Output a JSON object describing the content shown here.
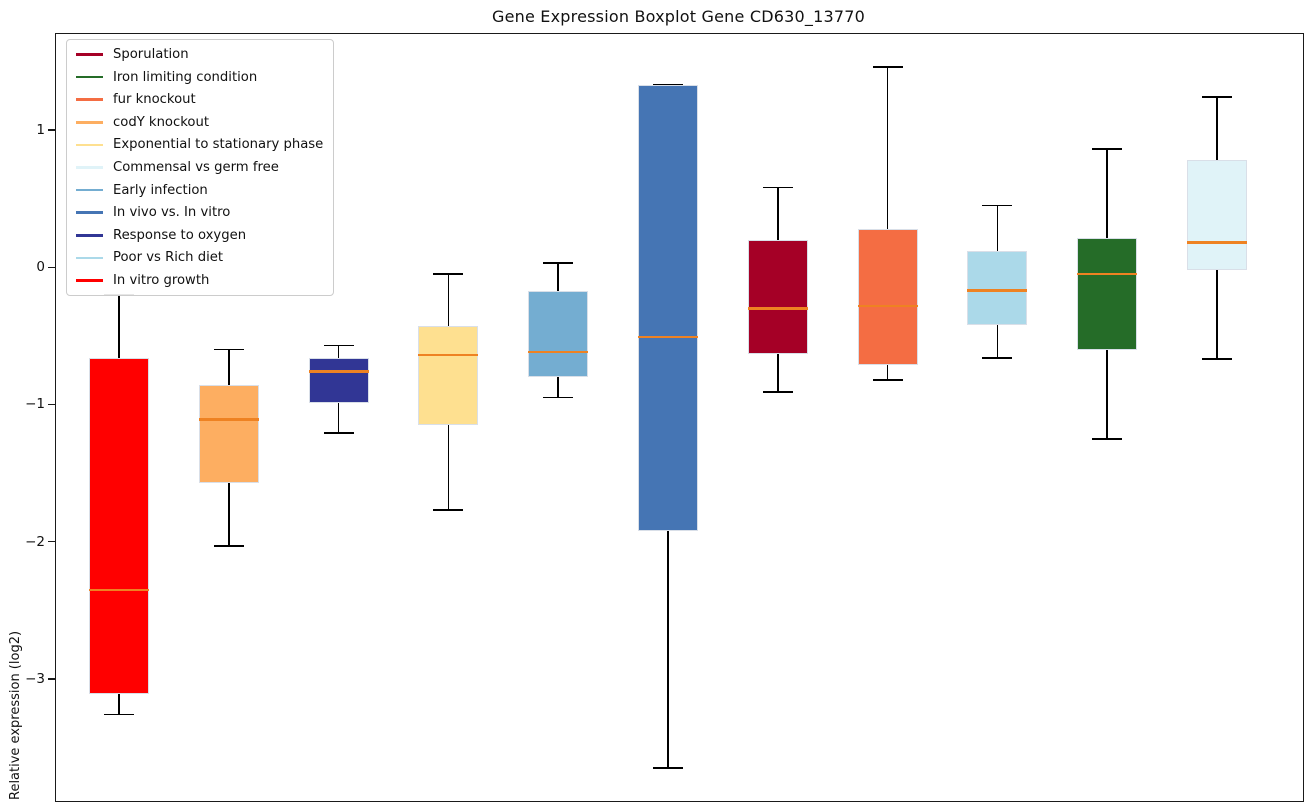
{
  "title": "Gene Expression Boxplot Gene CD630_13770",
  "ylabel": "Relative expression (log2)",
  "colors": {
    "median_line": "#ee8222",
    "whisker": "#000000",
    "frame": "#1a1a1a",
    "background": "#ffffff",
    "legend_border": "#cccccc"
  },
  "legend": {
    "position": "upper-left",
    "items": [
      {
        "label": "Sporulation",
        "color": "#a50026"
      },
      {
        "label": "Iron limiting condition",
        "color": "#256c28"
      },
      {
        "label": "fur knockout",
        "color": "#f46d43"
      },
      {
        "label": "codY knockout",
        "color": "#fdae61"
      },
      {
        "label": "Exponential to stationary phase",
        "color": "#fee090"
      },
      {
        "label": "Commensal vs germ free",
        "color": "#e0f3f8"
      },
      {
        "label": "Early infection",
        "color": "#74add1"
      },
      {
        "label": "In vivo vs. In vitro",
        "color": "#4575b4"
      },
      {
        "label": "Response to oxygen",
        "color": "#313695"
      },
      {
        "label": "Poor vs Rich diet",
        "color": "#abd9e9"
      },
      {
        "label": "In vitro growth",
        "color": "#ff0000"
      }
    ]
  },
  "chart_data": {
    "type": "boxplot",
    "title": "Gene Expression Boxplot Gene CD630_13770",
    "xlabel": "",
    "ylabel": "Relative expression (log2)",
    "ylim": [
      -3.89,
      1.7
    ],
    "yticks": [
      1,
      0,
      -1,
      -2,
      -3
    ],
    "ytick_labels": [
      "1",
      "0",
      "−1",
      "−2",
      "−3"
    ],
    "grid": false,
    "x_tick_labels_shown": false,
    "series": [
      {
        "name": "In vitro growth",
        "color": "#ff0000",
        "whisker_low": -3.26,
        "q1": -3.11,
        "median": -2.35,
        "q3": -0.66,
        "whisker_high": -0.2
      },
      {
        "name": "codY knockout",
        "color": "#fdae61",
        "whisker_low": -2.03,
        "q1": -1.57,
        "median": -1.11,
        "q3": -0.86,
        "whisker_high": -0.6
      },
      {
        "name": "Response to oxygen",
        "color": "#313695",
        "whisker_low": -1.21,
        "q1": -0.99,
        "median": -0.76,
        "q3": -0.66,
        "whisker_high": -0.57
      },
      {
        "name": "Exponential to stationary phase",
        "color": "#fee090",
        "whisker_low": -1.77,
        "q1": -1.15,
        "median": -0.64,
        "q3": -0.43,
        "whisker_high": -0.05
      },
      {
        "name": "Early infection",
        "color": "#74add1",
        "whisker_low": -0.95,
        "q1": -0.8,
        "median": -0.62,
        "q3": -0.17,
        "whisker_high": 0.03
      },
      {
        "name": "In vivo vs. In vitro",
        "color": "#4575b4",
        "whisker_low": -3.65,
        "q1": -1.92,
        "median": -0.51,
        "q3": 1.33,
        "whisker_high": 1.33
      },
      {
        "name": "Sporulation",
        "color": "#a50026",
        "whisker_low": -0.91,
        "q1": -0.63,
        "median": -0.3,
        "q3": 0.2,
        "whisker_high": 0.58
      },
      {
        "name": "fur knockout",
        "color": "#f46d43",
        "whisker_low": -0.82,
        "q1": -0.71,
        "median": -0.28,
        "q3": 0.28,
        "whisker_high": 1.46
      },
      {
        "name": "Poor vs Rich diet",
        "color": "#abd9e9",
        "whisker_low": -0.66,
        "q1": -0.42,
        "median": -0.17,
        "q3": 0.12,
        "whisker_high": 0.45
      },
      {
        "name": "Iron limiting condition",
        "color": "#256c28",
        "whisker_low": -1.25,
        "q1": -0.6,
        "median": -0.05,
        "q3": 0.21,
        "whisker_high": 0.86
      },
      {
        "name": "Commensal vs germ free",
        "color": "#e0f3f8",
        "whisker_low": -0.67,
        "q1": -0.02,
        "median": 0.18,
        "q3": 0.78,
        "whisker_high": 1.24
      }
    ]
  }
}
